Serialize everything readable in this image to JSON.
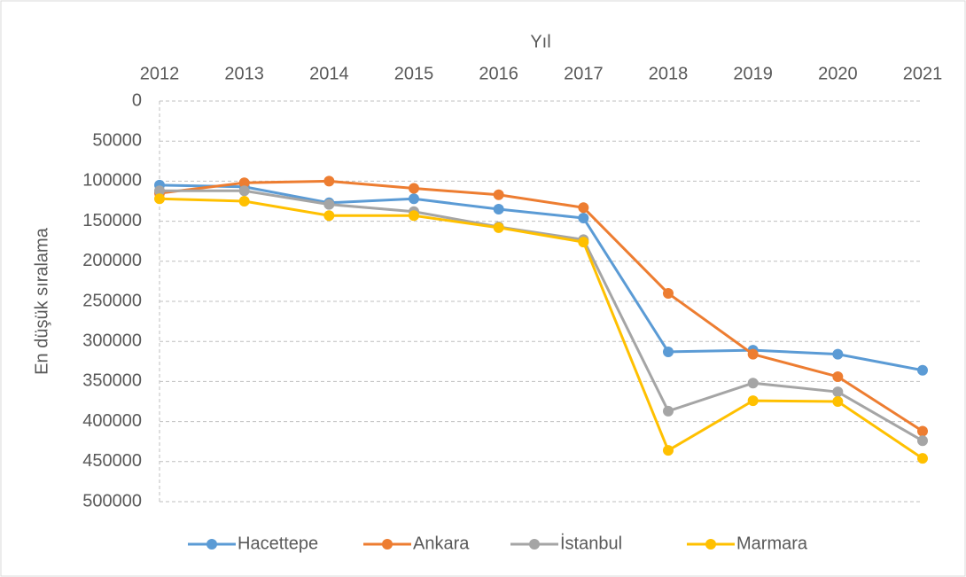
{
  "chart_data": {
    "type": "line",
    "x_label": "Yıl",
    "y_label": "En düşük sıralama",
    "categories": [
      "2012",
      "2013",
      "2014",
      "2015",
      "2016",
      "2017",
      "2018",
      "2019",
      "2020",
      "2021"
    ],
    "series": [
      {
        "name": "Hacettepe",
        "color": "#5b9bd5",
        "values": [
          105000,
          107000,
          127000,
          122000,
          135000,
          146000,
          313000,
          311000,
          316000,
          336000
        ]
      },
      {
        "name": "Ankara",
        "color": "#ed7d31",
        "values": [
          115000,
          102000,
          100000,
          109000,
          117000,
          133000,
          240000,
          316000,
          344000,
          412000
        ]
      },
      {
        "name": "İstanbul",
        "color": "#a5a5a5",
        "values": [
          112000,
          112000,
          129000,
          138000,
          157000,
          173000,
          387000,
          352000,
          363000,
          424000
        ]
      },
      {
        "name": "Marmara",
        "color": "#ffc000",
        "values": [
          122000,
          125000,
          143000,
          143000,
          158000,
          176000,
          436000,
          374000,
          375000,
          446000
        ]
      }
    ],
    "ylim": [
      0,
      500000
    ],
    "yticks": [
      0,
      50000,
      100000,
      150000,
      200000,
      250000,
      300000,
      350000,
      400000,
      450000,
      500000
    ],
    "y_inverted": true,
    "x_axis_position": "top",
    "grid": true,
    "legend": "bottom"
  }
}
